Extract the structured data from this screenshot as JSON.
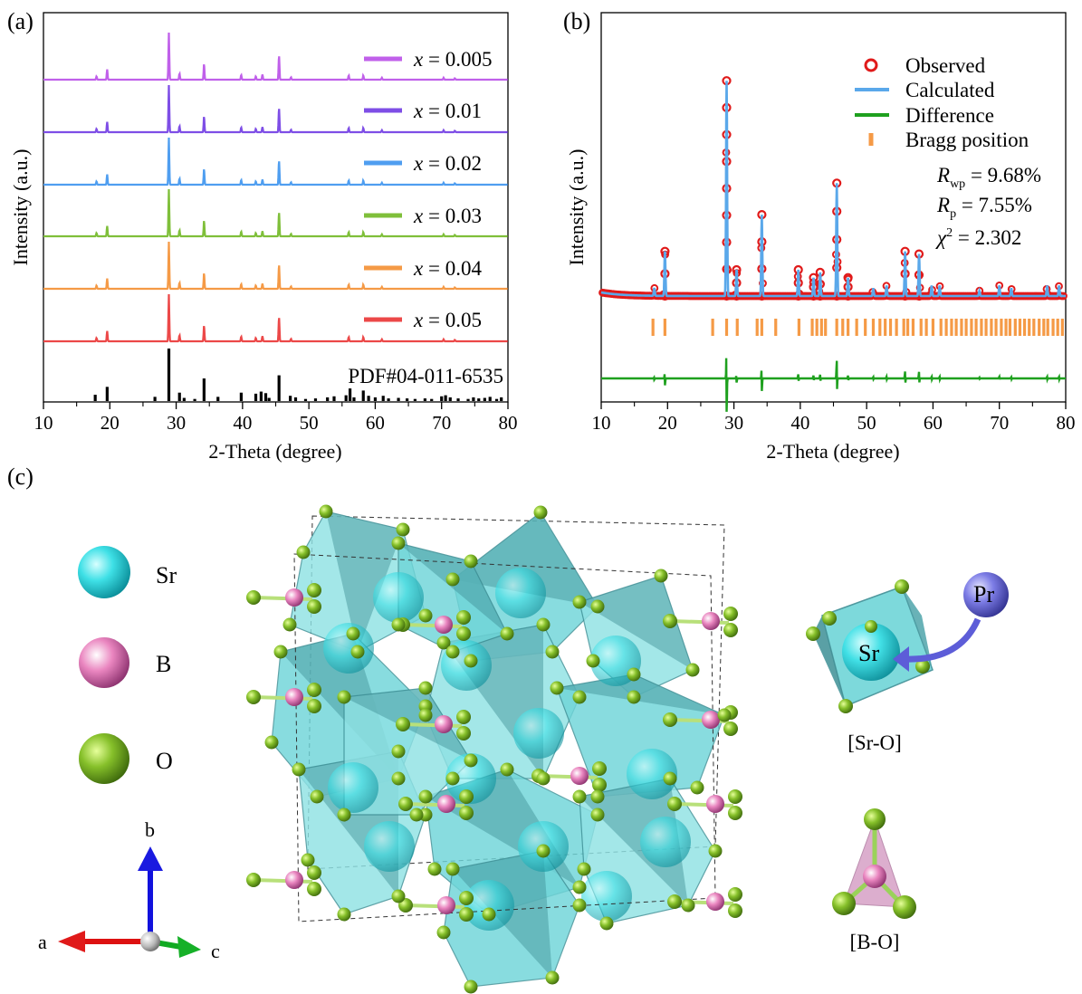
{
  "panels": {
    "a": {
      "label": "(a)"
    },
    "b": {
      "label": "(b)"
    },
    "c": {
      "label": "(c)"
    }
  },
  "chart_data": [
    {
      "type": "line",
      "panel": "a",
      "xlabel": "2-Theta (degree)",
      "ylabel": "Intensity (a.u.)",
      "xlim": [
        10,
        80
      ],
      "xticks": [
        "10",
        "20",
        "30",
        "40",
        "50",
        "60",
        "70",
        "80"
      ],
      "series": [
        {
          "name": "x = 0.005",
          "legend_italic": "x",
          "legend_rest": " = 0.005",
          "color": "#c060ea"
        },
        {
          "name": "x = 0.01",
          "legend_italic": "x",
          "legend_rest": " = 0.01",
          "color": "#7e4ee6"
        },
        {
          "name": "x = 0.02",
          "legend_italic": "x",
          "legend_rest": " = 0.02",
          "color": "#4f9ef0"
        },
        {
          "name": "x = 0.03",
          "legend_italic": "x",
          "legend_rest": " = 0.03",
          "color": "#7fbf3a"
        },
        {
          "name": "x = 0.04",
          "legend_italic": "x",
          "legend_rest": " = 0.04",
          "color": "#f59a46"
        },
        {
          "name": "x = 0.05",
          "legend_italic": "x",
          "legend_rest": " = 0.05",
          "color": "#ec4848"
        }
      ],
      "peaks": [
        {
          "x": 18.0,
          "h": 0.07
        },
        {
          "x": 19.6,
          "h": 0.22
        },
        {
          "x": 28.9,
          "h": 1.0
        },
        {
          "x": 30.5,
          "h": 0.13
        },
        {
          "x": 34.2,
          "h": 0.34
        },
        {
          "x": 39.8,
          "h": 0.1
        },
        {
          "x": 42.0,
          "h": 0.07
        },
        {
          "x": 43.0,
          "h": 0.11
        },
        {
          "x": 45.5,
          "h": 0.52
        },
        {
          "x": 47.3,
          "h": 0.05
        },
        {
          "x": 56.0,
          "h": 0.09
        },
        {
          "x": 58.2,
          "h": 0.09
        },
        {
          "x": 61.0,
          "h": 0.04
        },
        {
          "x": 70.3,
          "h": 0.04
        },
        {
          "x": 72.0,
          "h": 0.03
        }
      ],
      "reference": {
        "name": "PDF#04-011-6535",
        "sticks": [
          {
            "x": 17.8,
            "h": 0.12
          },
          {
            "x": 19.6,
            "h": 0.27
          },
          {
            "x": 26.8,
            "h": 0.08
          },
          {
            "x": 28.9,
            "h": 1.0
          },
          {
            "x": 30.5,
            "h": 0.16
          },
          {
            "x": 31.2,
            "h": 0.06
          },
          {
            "x": 32.8,
            "h": 0.04
          },
          {
            "x": 34.2,
            "h": 0.43
          },
          {
            "x": 36.3,
            "h": 0.08
          },
          {
            "x": 39.8,
            "h": 0.16
          },
          {
            "x": 42.0,
            "h": 0.14
          },
          {
            "x": 42.8,
            "h": 0.18
          },
          {
            "x": 43.5,
            "h": 0.15
          },
          {
            "x": 44.0,
            "h": 0.06
          },
          {
            "x": 45.5,
            "h": 0.49
          },
          {
            "x": 47.2,
            "h": 0.1
          },
          {
            "x": 48.0,
            "h": 0.07
          },
          {
            "x": 49.5,
            "h": 0.04
          },
          {
            "x": 51.0,
            "h": 0.05
          },
          {
            "x": 52.8,
            "h": 0.07
          },
          {
            "x": 53.8,
            "h": 0.09
          },
          {
            "x": 55.6,
            "h": 0.11
          },
          {
            "x": 56.2,
            "h": 0.24
          },
          {
            "x": 56.8,
            "h": 0.07
          },
          {
            "x": 58.2,
            "h": 0.2
          },
          {
            "x": 59.0,
            "h": 0.1
          },
          {
            "x": 60.0,
            "h": 0.07
          },
          {
            "x": 61.2,
            "h": 0.1
          },
          {
            "x": 62.0,
            "h": 0.05
          },
          {
            "x": 63.5,
            "h": 0.06
          },
          {
            "x": 64.8,
            "h": 0.05
          },
          {
            "x": 66.0,
            "h": 0.04
          },
          {
            "x": 67.5,
            "h": 0.05
          },
          {
            "x": 68.5,
            "h": 0.04
          },
          {
            "x": 70.0,
            "h": 0.09
          },
          {
            "x": 70.6,
            "h": 0.11
          },
          {
            "x": 71.3,
            "h": 0.07
          },
          {
            "x": 72.5,
            "h": 0.05
          },
          {
            "x": 74.0,
            "h": 0.04
          },
          {
            "x": 74.8,
            "h": 0.07
          },
          {
            "x": 75.6,
            "h": 0.05
          },
          {
            "x": 76.5,
            "h": 0.06
          },
          {
            "x": 77.3,
            "h": 0.08
          },
          {
            "x": 78.3,
            "h": 0.04
          },
          {
            "x": 79.0,
            "h": 0.07
          }
        ]
      }
    },
    {
      "type": "line",
      "panel": "b",
      "xlabel": "2-Theta (degree)",
      "ylabel": "Intensity (a.u.)",
      "xlim": [
        10,
        80
      ],
      "xticks": [
        "10",
        "20",
        "30",
        "40",
        "50",
        "60",
        "70",
        "80"
      ],
      "series": [
        {
          "name": "Observed",
          "color": "#e01a1a",
          "marker": "open-circle"
        },
        {
          "name": "Calculated",
          "color": "#5aa8ea"
        },
        {
          "name": "Difference",
          "color": "#1ea01e"
        },
        {
          "name": "Bragg position",
          "color": "#f59a46",
          "marker": "tick"
        }
      ],
      "peaks": [
        {
          "x": 18.0,
          "h": 0.03
        },
        {
          "x": 19.6,
          "h": 0.17
        },
        {
          "x": 28.9,
          "h": 0.82
        },
        {
          "x": 30.4,
          "h": 0.1
        },
        {
          "x": 34.2,
          "h": 0.31
        },
        {
          "x": 39.7,
          "h": 0.1
        },
        {
          "x": 42.0,
          "h": 0.07
        },
        {
          "x": 43.0,
          "h": 0.09
        },
        {
          "x": 45.5,
          "h": 0.43
        },
        {
          "x": 47.2,
          "h": 0.07
        },
        {
          "x": 51.0,
          "h": 0.03
        },
        {
          "x": 53.0,
          "h": 0.04
        },
        {
          "x": 55.8,
          "h": 0.17
        },
        {
          "x": 57.9,
          "h": 0.16
        },
        {
          "x": 59.8,
          "h": 0.04
        },
        {
          "x": 61.0,
          "h": 0.04
        },
        {
          "x": 67.0,
          "h": 0.02
        },
        {
          "x": 70.0,
          "h": 0.04
        },
        {
          "x": 71.8,
          "h": 0.03
        },
        {
          "x": 77.2,
          "h": 0.04
        },
        {
          "x": 79.0,
          "h": 0.04
        }
      ],
      "bragg": [
        17.8,
        19.6,
        26.8,
        28.9,
        30.5,
        33.5,
        34.2,
        36.3,
        39.8,
        41.8,
        42.5,
        43.2,
        43.8,
        45.5,
        46.4,
        47.2,
        48.5,
        49.8,
        51.0,
        52.0,
        52.8,
        53.6,
        54.5,
        55.6,
        56.2,
        57.0,
        58.2,
        59.0,
        60.0,
        61.2,
        62.0,
        62.8,
        63.5,
        64.3,
        65.0,
        65.8,
        66.5,
        67.3,
        68.0,
        68.8,
        69.5,
        70.3,
        71.0,
        71.6,
        72.4,
        73.1,
        73.8,
        74.5,
        75.2,
        76.0,
        76.7,
        77.3,
        78.1,
        78.8,
        79.5
      ],
      "annotations": {
        "rwp_sym": "R",
        "rwp_sub": "wp",
        "rwp_val": " = 9.68%",
        "rp_sym": "R",
        "rp_sub": "p",
        "rp_val": " = 7.55%",
        "chi_sym": "χ",
        "chi_sup": "2",
        "chi_val": " = 2.302"
      }
    }
  ],
  "structure": {
    "legend": [
      {
        "label": "Sr",
        "color": "#2fd8e0"
      },
      {
        "label": "B",
        "color": "#e27ab5"
      },
      {
        "label": "O",
        "color": "#7cb51e"
      }
    ],
    "axes": {
      "a": "a",
      "b": "b",
      "c": "c"
    },
    "sr_polyhedron": {
      "center": "Sr",
      "dopant": "Pr",
      "caption": "[Sr-O]"
    },
    "b_polyhedron": {
      "caption": "[B-O]"
    },
    "colors": {
      "polyhedron": "#6fd5d8",
      "polyhedron_dark": "#3d8f95",
      "pr": "#6f6fe0"
    }
  }
}
